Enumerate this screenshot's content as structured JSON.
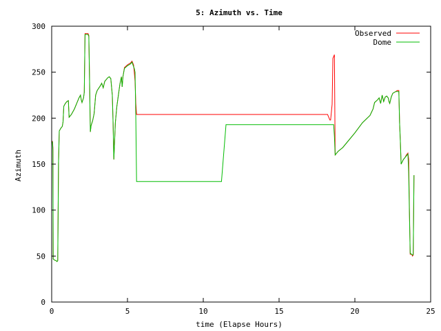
{
  "chart_data": {
    "type": "line",
    "title": "5: Azimuth vs. Time",
    "xlabel": "time (Elapse Hours)",
    "ylabel": "Azimuth",
    "xlim": [
      0,
      25
    ],
    "ylim": [
      0,
      300
    ],
    "xticks": [
      0,
      5,
      10,
      15,
      20,
      25
    ],
    "yticks": [
      0,
      50,
      100,
      150,
      200,
      250,
      300
    ],
    "legend": "top-right",
    "grid": false,
    "series": [
      {
        "name": "Observed",
        "color": "#ff0000",
        "points": [
          [
            0.0,
            173
          ],
          [
            0.05,
            175
          ],
          [
            0.08,
            168
          ],
          [
            0.1,
            47
          ],
          [
            0.15,
            46
          ],
          [
            0.3,
            45
          ],
          [
            0.35,
            44
          ],
          [
            0.4,
            45
          ],
          [
            0.45,
            150
          ],
          [
            0.5,
            186
          ],
          [
            0.6,
            189
          ],
          [
            0.7,
            191
          ],
          [
            0.75,
            196
          ],
          [
            0.8,
            213
          ],
          [
            0.9,
            216
          ],
          [
            1.0,
            218
          ],
          [
            1.1,
            219
          ],
          [
            1.15,
            201
          ],
          [
            1.3,
            204
          ],
          [
            1.5,
            210
          ],
          [
            1.7,
            218
          ],
          [
            1.8,
            222
          ],
          [
            1.9,
            225
          ],
          [
            1.95,
            220
          ],
          [
            2.0,
            217
          ],
          [
            2.1,
            222
          ],
          [
            2.15,
            228
          ],
          [
            2.2,
            292
          ],
          [
            2.4,
            292
          ],
          [
            2.45,
            290
          ],
          [
            2.5,
            240
          ],
          [
            2.55,
            185
          ],
          [
            2.6,
            192
          ],
          [
            2.7,
            197
          ],
          [
            2.8,
            205
          ],
          [
            2.9,
            225
          ],
          [
            3.0,
            230
          ],
          [
            3.2,
            235
          ],
          [
            3.3,
            238
          ],
          [
            3.4,
            233
          ],
          [
            3.5,
            240
          ],
          [
            3.7,
            244
          ],
          [
            3.8,
            245
          ],
          [
            3.9,
            243
          ],
          [
            4.0,
            225
          ],
          [
            4.05,
            195
          ],
          [
            4.1,
            155
          ],
          [
            4.15,
            175
          ],
          [
            4.2,
            195
          ],
          [
            4.3,
            213
          ],
          [
            4.4,
            225
          ],
          [
            4.5,
            237
          ],
          [
            4.6,
            245
          ],
          [
            4.65,
            234
          ],
          [
            4.7,
            245
          ],
          [
            4.8,
            255
          ],
          [
            5.0,
            258
          ],
          [
            5.2,
            260
          ],
          [
            5.3,
            262
          ],
          [
            5.4,
            258
          ],
          [
            5.45,
            250
          ],
          [
            5.5,
            240
          ],
          [
            5.55,
            216
          ],
          [
            5.6,
            204
          ],
          [
            6.0,
            204
          ],
          [
            10.0,
            204
          ],
          [
            15.0,
            204
          ],
          [
            18.2,
            204
          ],
          [
            18.3,
            200
          ],
          [
            18.35,
            198
          ],
          [
            18.4,
            198
          ],
          [
            18.5,
            215
          ],
          [
            18.55,
            265
          ],
          [
            18.65,
            269
          ],
          [
            18.7,
            160
          ],
          [
            18.9,
            164
          ],
          [
            19.2,
            168
          ],
          [
            19.5,
            174
          ],
          [
            20.0,
            184
          ],
          [
            20.5,
            195
          ],
          [
            21.0,
            203
          ],
          [
            21.2,
            210
          ],
          [
            21.3,
            217
          ],
          [
            21.5,
            220
          ],
          [
            21.6,
            222
          ],
          [
            21.7,
            216
          ],
          [
            21.8,
            225
          ],
          [
            21.9,
            218
          ],
          [
            22.0,
            223
          ],
          [
            22.1,
            224
          ],
          [
            22.2,
            222
          ],
          [
            22.25,
            218
          ],
          [
            22.3,
            216
          ],
          [
            22.4,
            223
          ],
          [
            22.5,
            227
          ],
          [
            22.7,
            229
          ],
          [
            22.8,
            230
          ],
          [
            22.9,
            230
          ],
          [
            22.95,
            195
          ],
          [
            23.0,
            175
          ],
          [
            23.05,
            150
          ],
          [
            23.2,
            155
          ],
          [
            23.3,
            157
          ],
          [
            23.4,
            160
          ],
          [
            23.5,
            162
          ],
          [
            23.55,
            155
          ],
          [
            23.6,
            100
          ],
          [
            23.65,
            52
          ],
          [
            23.75,
            52
          ],
          [
            23.8,
            50
          ],
          [
            23.85,
            51
          ],
          [
            23.9,
            138
          ]
        ]
      },
      {
        "name": "Dome",
        "color": "#00bb00",
        "points": [
          [
            0.0,
            173
          ],
          [
            0.05,
            174
          ],
          [
            0.08,
            165
          ],
          [
            0.1,
            47
          ],
          [
            0.15,
            46
          ],
          [
            0.3,
            45
          ],
          [
            0.35,
            44
          ],
          [
            0.4,
            45
          ],
          [
            0.45,
            150
          ],
          [
            0.5,
            186
          ],
          [
            0.6,
            189
          ],
          [
            0.7,
            191
          ],
          [
            0.75,
            196
          ],
          [
            0.8,
            213
          ],
          [
            0.9,
            216
          ],
          [
            1.0,
            218
          ],
          [
            1.1,
            219
          ],
          [
            1.15,
            201
          ],
          [
            1.3,
            204
          ],
          [
            1.5,
            210
          ],
          [
            1.7,
            218
          ],
          [
            1.8,
            222
          ],
          [
            1.9,
            225
          ],
          [
            1.95,
            220
          ],
          [
            2.0,
            217
          ],
          [
            2.1,
            222
          ],
          [
            2.15,
            228
          ],
          [
            2.2,
            291
          ],
          [
            2.4,
            291
          ],
          [
            2.45,
            289
          ],
          [
            2.5,
            240
          ],
          [
            2.55,
            185
          ],
          [
            2.6,
            192
          ],
          [
            2.7,
            197
          ],
          [
            2.8,
            205
          ],
          [
            2.9,
            225
          ],
          [
            3.0,
            230
          ],
          [
            3.2,
            235
          ],
          [
            3.3,
            238
          ],
          [
            3.4,
            233
          ],
          [
            3.5,
            240
          ],
          [
            3.7,
            244
          ],
          [
            3.8,
            245
          ],
          [
            3.9,
            243
          ],
          [
            4.0,
            225
          ],
          [
            4.05,
            195
          ],
          [
            4.1,
            155
          ],
          [
            4.15,
            175
          ],
          [
            4.2,
            195
          ],
          [
            4.3,
            213
          ],
          [
            4.4,
            225
          ],
          [
            4.5,
            237
          ],
          [
            4.6,
            245
          ],
          [
            4.65,
            234
          ],
          [
            4.7,
            245
          ],
          [
            4.8,
            254
          ],
          [
            5.0,
            257
          ],
          [
            5.2,
            259
          ],
          [
            5.3,
            261
          ],
          [
            5.4,
            256
          ],
          [
            5.45,
            254
          ],
          [
            5.5,
            250
          ],
          [
            5.55,
            200
          ],
          [
            5.6,
            131
          ],
          [
            6.0,
            131
          ],
          [
            8.0,
            131
          ],
          [
            11.2,
            131
          ],
          [
            11.5,
            193
          ],
          [
            15.0,
            193
          ],
          [
            18.6,
            193
          ],
          [
            18.65,
            180
          ],
          [
            18.7,
            160
          ],
          [
            18.9,
            164
          ],
          [
            19.2,
            168
          ],
          [
            19.5,
            174
          ],
          [
            20.0,
            184
          ],
          [
            20.5,
            195
          ],
          [
            21.0,
            203
          ],
          [
            21.2,
            210
          ],
          [
            21.3,
            217
          ],
          [
            21.5,
            220
          ],
          [
            21.6,
            222
          ],
          [
            21.7,
            216
          ],
          [
            21.8,
            225
          ],
          [
            21.9,
            218
          ],
          [
            22.0,
            223
          ],
          [
            22.1,
            224
          ],
          [
            22.2,
            222
          ],
          [
            22.25,
            218
          ],
          [
            22.3,
            216
          ],
          [
            22.4,
            223
          ],
          [
            22.5,
            227
          ],
          [
            22.7,
            229
          ],
          [
            22.8,
            229
          ],
          [
            22.9,
            229
          ],
          [
            22.95,
            195
          ],
          [
            23.0,
            175
          ],
          [
            23.05,
            150
          ],
          [
            23.2,
            155
          ],
          [
            23.3,
            157
          ],
          [
            23.4,
            159
          ],
          [
            23.5,
            161
          ],
          [
            23.55,
            140
          ],
          [
            23.6,
            95
          ],
          [
            23.65,
            53
          ],
          [
            23.75,
            52
          ],
          [
            23.8,
            51
          ],
          [
            23.85,
            52
          ],
          [
            23.9,
            138
          ]
        ]
      }
    ]
  }
}
